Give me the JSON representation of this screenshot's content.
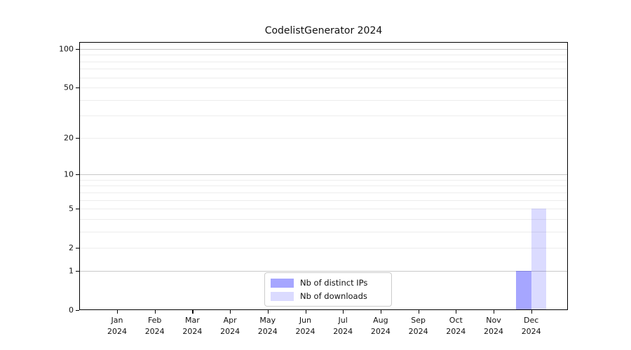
{
  "chart_data": {
    "type": "bar",
    "title": "CodelistGenerator 2024",
    "x_categories": [
      "Jan 2024",
      "Feb 2024",
      "Mar 2024",
      "Apr 2024",
      "May 2024",
      "Jun 2024",
      "Jul 2024",
      "Aug 2024",
      "Sep 2024",
      "Oct 2024",
      "Nov 2024",
      "Dec 2024"
    ],
    "series": [
      {
        "name": "Nb of distinct IPs",
        "color": "rgba(0,0,255,0.35)",
        "values": [
          0,
          0,
          0,
          0,
          0,
          0,
          0,
          0,
          0,
          0,
          0,
          1
        ]
      },
      {
        "name": "Nb of downloads",
        "color": "rgba(0,0,255,0.14)",
        "values": [
          0,
          0,
          0,
          0,
          0,
          0,
          0,
          0,
          0,
          0,
          0,
          5
        ]
      }
    ],
    "yaxis": {
      "scale": "log1p",
      "tick_values": [
        0,
        1,
        2,
        5,
        10,
        20,
        50,
        100
      ],
      "tick_labels": [
        "0",
        "1",
        "2",
        "5",
        "10",
        "20",
        "50",
        "100"
      ],
      "major_grid_values": [
        1,
        10,
        100
      ],
      "minor_grid_values": [
        2,
        3,
        4,
        5,
        6,
        7,
        8,
        9,
        20,
        30,
        40,
        50,
        60,
        70,
        80,
        90
      ],
      "ylim": [
        0,
        113
      ]
    },
    "xlabel": "",
    "ylabel": "",
    "grid": true,
    "legend": {
      "position": "lower center",
      "entries": [
        "Nb of distinct IPs",
        "Nb of downloads"
      ]
    }
  },
  "colors": {
    "background": "#ffffff",
    "axis_frame": "#000000",
    "text": "#111111",
    "major_grid": "#c8c8c8",
    "minor_grid": "#ededed",
    "legend_border": "#cccccc",
    "bar_distinct_ips": "rgba(0,0,255,0.35)",
    "bar_downloads": "rgba(0,0,255,0.14)"
  }
}
